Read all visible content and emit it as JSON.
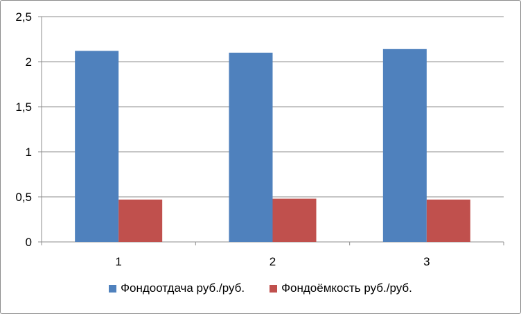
{
  "chart_data": {
    "type": "bar",
    "title": "",
    "xlabel": "",
    "ylabel": "",
    "categories": [
      "1",
      "2",
      "3"
    ],
    "series": [
      {
        "name": "Фондоотдача руб./руб.",
        "color": "#4f81bd",
        "values": [
          2.12,
          2.1,
          2.14
        ]
      },
      {
        "name": "Фондоёмкость руб./руб.",
        "color": "#c0504d",
        "values": [
          0.47,
          0.48,
          0.47
        ]
      }
    ],
    "ylim": [
      0,
      2.5
    ],
    "yticks": [
      "0",
      "0,5",
      "1",
      "1,5",
      "2",
      "2,5"
    ],
    "ytick_values": [
      0,
      0.5,
      1,
      1.5,
      2,
      2.5
    ],
    "grid": true,
    "legend_position": "bottom"
  }
}
